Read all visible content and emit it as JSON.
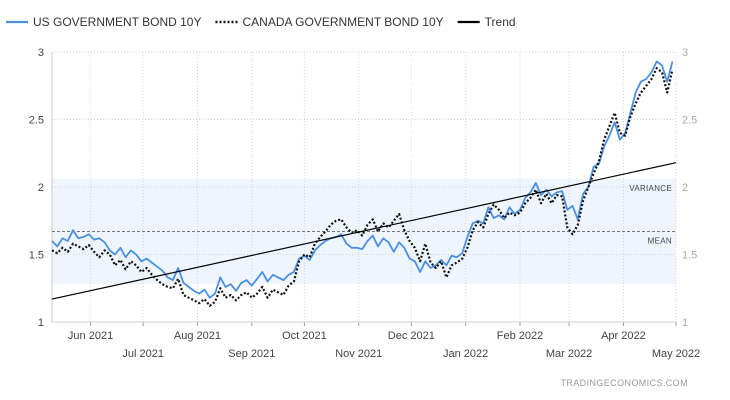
{
  "chart_data": {
    "type": "line",
    "title": "",
    "xlabel": "",
    "ylabel": "",
    "ylim": [
      1,
      3
    ],
    "yticks": [
      1,
      1.5,
      2,
      2.5,
      3
    ],
    "ytick_labels": [
      "1",
      "1.5",
      "2",
      "2.5",
      "3"
    ],
    "grid": true,
    "legend_position": "top-left",
    "x_start": "2021-05-10",
    "x_end": "2022-05-01",
    "xticks": [
      {
        "date": "2021-06-01",
        "label": "Jun 2021",
        "row": 1
      },
      {
        "date": "2021-07-01",
        "label": "Jul 2021",
        "row": 2
      },
      {
        "date": "2021-08-01",
        "label": "Aug 2021",
        "row": 1
      },
      {
        "date": "2021-09-01",
        "label": "Sep 2021",
        "row": 2
      },
      {
        "date": "2021-10-01",
        "label": "Oct 2021",
        "row": 1
      },
      {
        "date": "2021-11-01",
        "label": "Nov 2021",
        "row": 2
      },
      {
        "date": "2021-12-01",
        "label": "Dec 2021",
        "row": 1
      },
      {
        "date": "2022-01-01",
        "label": "Jan 2022",
        "row": 2
      },
      {
        "date": "2022-02-01",
        "label": "Feb 2022",
        "row": 1
      },
      {
        "date": "2022-03-01",
        "label": "Mar 2022",
        "row": 2
      },
      {
        "date": "2022-04-01",
        "label": "Apr 2022",
        "row": 1
      },
      {
        "date": "2022-05-01",
        "label": "May 2022",
        "row": 2
      }
    ],
    "series": [
      {
        "name": "US GOVERNMENT BOND 10Y",
        "color": "#4a90e2",
        "style": "solid",
        "points": [
          [
            "2021-05-10",
            1.6
          ],
          [
            "2021-05-13",
            1.56
          ],
          [
            "2021-05-16",
            1.62
          ],
          [
            "2021-05-19",
            1.6
          ],
          [
            "2021-05-22",
            1.68
          ],
          [
            "2021-05-25",
            1.62
          ],
          [
            "2021-05-28",
            1.63
          ],
          [
            "2021-05-31",
            1.65
          ],
          [
            "2021-06-03",
            1.61
          ],
          [
            "2021-06-06",
            1.62
          ],
          [
            "2021-06-09",
            1.59
          ],
          [
            "2021-06-12",
            1.53
          ],
          [
            "2021-06-15",
            1.5
          ],
          [
            "2021-06-18",
            1.55
          ],
          [
            "2021-06-21",
            1.48
          ],
          [
            "2021-06-24",
            1.53
          ],
          [
            "2021-06-27",
            1.5
          ],
          [
            "2021-06-30",
            1.45
          ],
          [
            "2021-07-03",
            1.47
          ],
          [
            "2021-07-06",
            1.44
          ],
          [
            "2021-07-09",
            1.41
          ],
          [
            "2021-07-12",
            1.38
          ],
          [
            "2021-07-15",
            1.33
          ],
          [
            "2021-07-18",
            1.31
          ],
          [
            "2021-07-21",
            1.4
          ],
          [
            "2021-07-24",
            1.29
          ],
          [
            "2021-07-27",
            1.26
          ],
          [
            "2021-07-30",
            1.23
          ],
          [
            "2021-08-02",
            1.21
          ],
          [
            "2021-08-05",
            1.24
          ],
          [
            "2021-08-08",
            1.18
          ],
          [
            "2021-08-11",
            1.21
          ],
          [
            "2021-08-14",
            1.33
          ],
          [
            "2021-08-17",
            1.26
          ],
          [
            "2021-08-20",
            1.28
          ],
          [
            "2021-08-23",
            1.23
          ],
          [
            "2021-08-26",
            1.29
          ],
          [
            "2021-08-29",
            1.31
          ],
          [
            "2021-09-01",
            1.27
          ],
          [
            "2021-09-04",
            1.32
          ],
          [
            "2021-09-07",
            1.37
          ],
          [
            "2021-09-10",
            1.3
          ],
          [
            "2021-09-13",
            1.35
          ],
          [
            "2021-09-16",
            1.33
          ],
          [
            "2021-09-19",
            1.31
          ],
          [
            "2021-09-22",
            1.35
          ],
          [
            "2021-09-25",
            1.37
          ],
          [
            "2021-09-28",
            1.47
          ],
          [
            "2021-10-01",
            1.49
          ],
          [
            "2021-10-04",
            1.46
          ],
          [
            "2021-10-07",
            1.53
          ],
          [
            "2021-10-10",
            1.57
          ],
          [
            "2021-10-13",
            1.6
          ],
          [
            "2021-10-16",
            1.62
          ],
          [
            "2021-10-19",
            1.63
          ],
          [
            "2021-10-22",
            1.65
          ],
          [
            "2021-10-25",
            1.58
          ],
          [
            "2021-10-28",
            1.55
          ],
          [
            "2021-10-31",
            1.55
          ],
          [
            "2021-11-03",
            1.54
          ],
          [
            "2021-11-06",
            1.6
          ],
          [
            "2021-11-09",
            1.64
          ],
          [
            "2021-11-12",
            1.56
          ],
          [
            "2021-11-15",
            1.62
          ],
          [
            "2021-11-18",
            1.59
          ],
          [
            "2021-11-21",
            1.52
          ],
          [
            "2021-11-24",
            1.59
          ],
          [
            "2021-11-27",
            1.55
          ],
          [
            "2021-11-30",
            1.47
          ],
          [
            "2021-12-03",
            1.45
          ],
          [
            "2021-12-06",
            1.37
          ],
          [
            "2021-12-09",
            1.45
          ],
          [
            "2021-12-12",
            1.4
          ],
          [
            "2021-12-15",
            1.42
          ],
          [
            "2021-12-18",
            1.46
          ],
          [
            "2021-12-21",
            1.42
          ],
          [
            "2021-12-24",
            1.49
          ],
          [
            "2021-12-27",
            1.48
          ],
          [
            "2021-12-30",
            1.51
          ],
          [
            "2022-01-02",
            1.63
          ],
          [
            "2022-01-05",
            1.73
          ],
          [
            "2022-01-08",
            1.75
          ],
          [
            "2022-01-11",
            1.73
          ],
          [
            "2022-01-14",
            1.85
          ],
          [
            "2022-01-17",
            1.77
          ],
          [
            "2022-01-20",
            1.79
          ],
          [
            "2022-01-23",
            1.76
          ],
          [
            "2022-01-26",
            1.85
          ],
          [
            "2022-01-29",
            1.8
          ],
          [
            "2022-02-01",
            1.83
          ],
          [
            "2022-02-04",
            1.92
          ],
          [
            "2022-02-07",
            1.96
          ],
          [
            "2022-02-10",
            2.03
          ],
          [
            "2022-02-13",
            1.94
          ],
          [
            "2022-02-16",
            1.98
          ],
          [
            "2022-02-19",
            1.93
          ],
          [
            "2022-02-22",
            1.96
          ],
          [
            "2022-02-25",
            1.97
          ],
          [
            "2022-02-28",
            1.83
          ],
          [
            "2022-03-03",
            1.86
          ],
          [
            "2022-03-06",
            1.76
          ],
          [
            "2022-03-09",
            1.95
          ],
          [
            "2022-03-12",
            2.0
          ],
          [
            "2022-03-15",
            2.15
          ],
          [
            "2022-03-18",
            2.17
          ],
          [
            "2022-03-21",
            2.3
          ],
          [
            "2022-03-24",
            2.38
          ],
          [
            "2022-03-27",
            2.48
          ],
          [
            "2022-03-30",
            2.35
          ],
          [
            "2022-04-02",
            2.4
          ],
          [
            "2022-04-05",
            2.55
          ],
          [
            "2022-04-08",
            2.7
          ],
          [
            "2022-04-11",
            2.78
          ],
          [
            "2022-04-14",
            2.8
          ],
          [
            "2022-04-17",
            2.85
          ],
          [
            "2022-04-20",
            2.93
          ],
          [
            "2022-04-23",
            2.9
          ],
          [
            "2022-04-26",
            2.78
          ],
          [
            "2022-04-29",
            2.93
          ]
        ]
      },
      {
        "name": "CANADA GOVERNMENT BOND 10Y",
        "color": "#111111",
        "style": "dotted",
        "points": [
          [
            "2021-05-10",
            1.53
          ],
          [
            "2021-05-13",
            1.51
          ],
          [
            "2021-05-16",
            1.55
          ],
          [
            "2021-05-19",
            1.52
          ],
          [
            "2021-05-22",
            1.58
          ],
          [
            "2021-05-25",
            1.56
          ],
          [
            "2021-05-28",
            1.54
          ],
          [
            "2021-05-31",
            1.57
          ],
          [
            "2021-06-03",
            1.52
          ],
          [
            "2021-06-06",
            1.48
          ],
          [
            "2021-06-09",
            1.53
          ],
          [
            "2021-06-12",
            1.5
          ],
          [
            "2021-06-15",
            1.42
          ],
          [
            "2021-06-18",
            1.46
          ],
          [
            "2021-06-21",
            1.39
          ],
          [
            "2021-06-24",
            1.45
          ],
          [
            "2021-06-27",
            1.42
          ],
          [
            "2021-06-30",
            1.37
          ],
          [
            "2021-07-03",
            1.4
          ],
          [
            "2021-07-06",
            1.35
          ],
          [
            "2021-07-09",
            1.31
          ],
          [
            "2021-07-12",
            1.28
          ],
          [
            "2021-07-15",
            1.26
          ],
          [
            "2021-07-18",
            1.25
          ],
          [
            "2021-07-21",
            1.32
          ],
          [
            "2021-07-24",
            1.2
          ],
          [
            "2021-07-27",
            1.18
          ],
          [
            "2021-07-30",
            1.16
          ],
          [
            "2021-08-02",
            1.14
          ],
          [
            "2021-08-05",
            1.17
          ],
          [
            "2021-08-08",
            1.12
          ],
          [
            "2021-08-11",
            1.15
          ],
          [
            "2021-08-14",
            1.25
          ],
          [
            "2021-08-17",
            1.18
          ],
          [
            "2021-08-20",
            1.2
          ],
          [
            "2021-08-23",
            1.16
          ],
          [
            "2021-08-26",
            1.2
          ],
          [
            "2021-08-29",
            1.22
          ],
          [
            "2021-09-01",
            1.18
          ],
          [
            "2021-09-04",
            1.21
          ],
          [
            "2021-09-07",
            1.26
          ],
          [
            "2021-09-10",
            1.18
          ],
          [
            "2021-09-13",
            1.24
          ],
          [
            "2021-09-16",
            1.22
          ],
          [
            "2021-09-19",
            1.2
          ],
          [
            "2021-09-22",
            1.27
          ],
          [
            "2021-09-25",
            1.3
          ],
          [
            "2021-09-28",
            1.45
          ],
          [
            "2021-10-01",
            1.5
          ],
          [
            "2021-10-04",
            1.48
          ],
          [
            "2021-10-07",
            1.58
          ],
          [
            "2021-10-10",
            1.63
          ],
          [
            "2021-10-13",
            1.67
          ],
          [
            "2021-10-16",
            1.72
          ],
          [
            "2021-10-19",
            1.75
          ],
          [
            "2021-10-22",
            1.76
          ],
          [
            "2021-10-25",
            1.7
          ],
          [
            "2021-10-28",
            1.66
          ],
          [
            "2021-10-31",
            1.68
          ],
          [
            "2021-11-03",
            1.64
          ],
          [
            "2021-11-06",
            1.72
          ],
          [
            "2021-11-09",
            1.76
          ],
          [
            "2021-11-12",
            1.67
          ],
          [
            "2021-11-15",
            1.73
          ],
          [
            "2021-11-18",
            1.7
          ],
          [
            "2021-11-21",
            1.75
          ],
          [
            "2021-11-24",
            1.8
          ],
          [
            "2021-11-27",
            1.68
          ],
          [
            "2021-11-30",
            1.6
          ],
          [
            "2021-12-03",
            1.55
          ],
          [
            "2021-12-06",
            1.45
          ],
          [
            "2021-12-09",
            1.58
          ],
          [
            "2021-12-12",
            1.44
          ],
          [
            "2021-12-15",
            1.4
          ],
          [
            "2021-12-18",
            1.45
          ],
          [
            "2021-12-21",
            1.33
          ],
          [
            "2021-12-24",
            1.42
          ],
          [
            "2021-12-27",
            1.44
          ],
          [
            "2021-12-30",
            1.47
          ],
          [
            "2022-01-02",
            1.55
          ],
          [
            "2022-01-05",
            1.68
          ],
          [
            "2022-01-08",
            1.74
          ],
          [
            "2022-01-11",
            1.7
          ],
          [
            "2022-01-14",
            1.8
          ],
          [
            "2022-01-17",
            1.87
          ],
          [
            "2022-01-20",
            1.83
          ],
          [
            "2022-01-23",
            1.77
          ],
          [
            "2022-01-26",
            1.81
          ],
          [
            "2022-01-29",
            1.79
          ],
          [
            "2022-02-01",
            1.81
          ],
          [
            "2022-02-04",
            1.88
          ],
          [
            "2022-02-07",
            1.92
          ],
          [
            "2022-02-10",
            1.98
          ],
          [
            "2022-02-13",
            1.88
          ],
          [
            "2022-02-16",
            1.95
          ],
          [
            "2022-02-19",
            1.88
          ],
          [
            "2022-02-22",
            1.94
          ],
          [
            "2022-02-25",
            1.93
          ],
          [
            "2022-02-28",
            1.7
          ],
          [
            "2022-03-03",
            1.65
          ],
          [
            "2022-03-06",
            1.72
          ],
          [
            "2022-03-09",
            1.9
          ],
          [
            "2022-03-12",
            2.0
          ],
          [
            "2022-03-15",
            2.1
          ],
          [
            "2022-03-18",
            2.19
          ],
          [
            "2022-03-21",
            2.35
          ],
          [
            "2022-03-24",
            2.45
          ],
          [
            "2022-03-27",
            2.55
          ],
          [
            "2022-03-30",
            2.4
          ],
          [
            "2022-04-02",
            2.38
          ],
          [
            "2022-04-05",
            2.52
          ],
          [
            "2022-04-08",
            2.62
          ],
          [
            "2022-04-11",
            2.7
          ],
          [
            "2022-04-14",
            2.75
          ],
          [
            "2022-04-17",
            2.8
          ],
          [
            "2022-04-20",
            2.88
          ],
          [
            "2022-04-23",
            2.85
          ],
          [
            "2022-04-26",
            2.7
          ],
          [
            "2022-04-29",
            2.87
          ]
        ]
      },
      {
        "name": "Trend",
        "color": "#000000",
        "style": "solid",
        "points": [
          [
            "2021-05-10",
            1.17
          ],
          [
            "2022-05-01",
            2.18
          ]
        ]
      }
    ],
    "mean": {
      "value": 1.67,
      "label": "MEAN"
    },
    "variance_band": {
      "low": 1.28,
      "high": 2.06,
      "label": "VARIANCE"
    }
  },
  "credit": "TRADINGECONOMICS.COM"
}
